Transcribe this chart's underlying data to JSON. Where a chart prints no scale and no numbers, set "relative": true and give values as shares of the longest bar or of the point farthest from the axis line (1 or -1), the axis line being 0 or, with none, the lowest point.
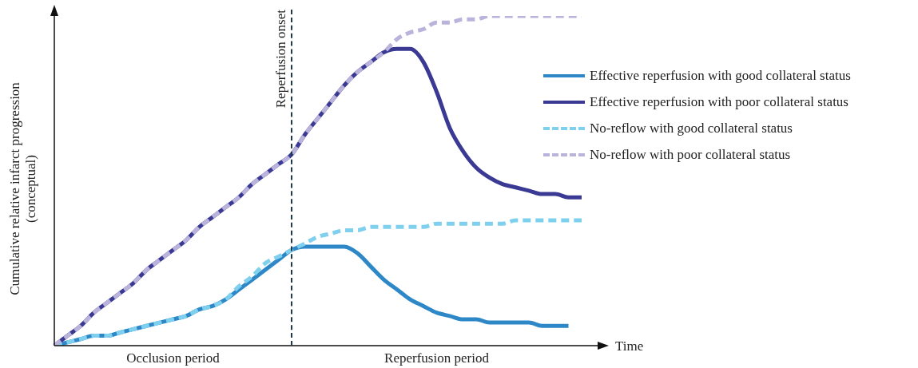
{
  "chart_data": {
    "type": "line",
    "relative": true,
    "xlabel": "Time",
    "ylabel": "Cumulative relative infarct progression\n(conceptual)",
    "categories": [
      null,
      null,
      null,
      null,
      null,
      null,
      null,
      null,
      null,
      null,
      null,
      null,
      null,
      null,
      null,
      null,
      null,
      null,
      null,
      null,
      null,
      null,
      null,
      null,
      null,
      null,
      null,
      null,
      null,
      null,
      null,
      null,
      null,
      null,
      null,
      null,
      null,
      null,
      null,
      null,
      null
    ],
    "series": [
      {
        "name": "Effective reperfusion with good collateral status",
        "color": "#2e88c8",
        "line_style": "solid",
        "values": [
          0,
          0.01,
          0.02,
          0.03,
          0.03,
          0.04,
          0.05,
          0.06,
          0.07,
          0.08,
          0.09,
          0.11,
          0.12,
          0.14,
          0.17,
          0.2,
          0.23,
          0.26,
          0.29,
          0.3,
          0.3,
          0.3,
          0.3,
          0.28,
          0.24,
          0.2,
          0.17,
          0.14,
          0.12,
          0.1,
          0.09,
          0.08,
          0.08,
          0.07,
          0.07,
          0.07,
          0.07,
          0.06,
          0.06,
          0.06,
          null
        ]
      },
      {
        "name": "Effective reperfusion with poor collateral status",
        "color": "#3a3a94",
        "line_style": "solid",
        "values": [
          0,
          0.03,
          0.06,
          0.1,
          0.13,
          0.16,
          0.19,
          0.23,
          0.26,
          0.29,
          0.32,
          0.36,
          0.39,
          0.42,
          0.45,
          0.49,
          0.52,
          0.55,
          0.58,
          0.64,
          0.69,
          0.74,
          0.79,
          0.83,
          0.86,
          0.89,
          0.9,
          0.9,
          0.86,
          0.77,
          0.66,
          0.59,
          0.54,
          0.51,
          0.49,
          0.48,
          0.47,
          0.46,
          0.46,
          0.45,
          0.45
        ]
      },
      {
        "name": "No-reflow with good collateral status",
        "color": "#7fd0ee",
        "line_style": "dashed",
        "values": [
          0,
          0.01,
          0.02,
          0.03,
          0.03,
          0.04,
          0.05,
          0.06,
          0.07,
          0.08,
          0.09,
          0.11,
          0.12,
          0.14,
          0.18,
          0.21,
          0.25,
          0.27,
          0.29,
          0.31,
          0.33,
          0.34,
          0.35,
          0.35,
          0.36,
          0.36,
          0.36,
          0.36,
          0.36,
          0.37,
          0.37,
          0.37,
          0.37,
          0.37,
          0.37,
          0.38,
          0.38,
          0.38,
          0.38,
          0.38,
          0.38
        ]
      },
      {
        "name": "No-reflow with poor collateral status",
        "color": "#bab4dc",
        "line_style": "dashed",
        "values": [
          0,
          0.03,
          0.06,
          0.1,
          0.13,
          0.16,
          0.19,
          0.23,
          0.26,
          0.29,
          0.32,
          0.36,
          0.39,
          0.42,
          0.45,
          0.49,
          0.52,
          0.55,
          0.58,
          0.64,
          0.69,
          0.74,
          0.79,
          0.83,
          0.86,
          0.89,
          0.93,
          0.95,
          0.96,
          0.98,
          0.98,
          0.99,
          0.99,
          1,
          1,
          1,
          1,
          1,
          1,
          1,
          1
        ]
      }
    ],
    "annotations": [
      "Reperfusion onset",
      "Occlusion period",
      "Reperfusion period"
    ],
    "legend": "right",
    "grid": false,
    "marker": "none"
  }
}
